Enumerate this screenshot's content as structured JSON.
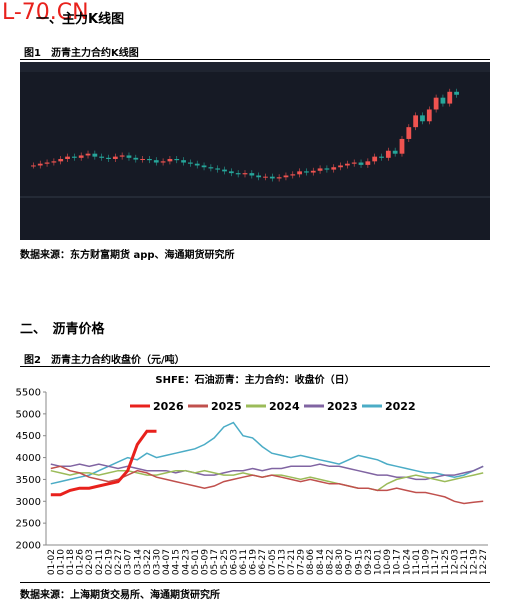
{
  "watermark": "L-70.CN",
  "heading1": "一、主力K线图",
  "figure1": {
    "caption": "图1　沥青主力合约K线图",
    "kline": {
      "type": "candlestick",
      "ylim": [
        3000,
        4900
      ],
      "closes": [
        3450,
        3480,
        3500,
        3520,
        3560,
        3600,
        3580,
        3620,
        3650,
        3600,
        3580,
        3560,
        3600,
        3620,
        3580,
        3550,
        3560,
        3540,
        3500,
        3520,
        3560,
        3540,
        3500,
        3480,
        3450,
        3420,
        3400,
        3380,
        3350,
        3320,
        3300,
        3320,
        3280,
        3250,
        3260,
        3230,
        3250,
        3280,
        3300,
        3350,
        3330,
        3360,
        3400,
        3380,
        3420,
        3450,
        3480,
        3500,
        3460,
        3520,
        3600,
        3580,
        3700,
        3650,
        3900,
        4100,
        4300,
        4200,
        4400,
        4600,
        4500,
        4700,
        4650
      ]
    },
    "source": "数据来源：东方财富期货 app、海通期货研究所"
  },
  "heading2": "二、　沥青价格",
  "figure2_caption": "图2　沥青主力合约收盘价（元/吨）",
  "chart_data": {
    "type": "line",
    "title": "SHFE：石油沥青：主力合约：收盘价（日）",
    "categories": [
      "01-02",
      "01-10",
      "01-18",
      "01-26",
      "02-03",
      "02-11",
      "02-19",
      "02-27",
      "03-07",
      "03-14",
      "03-22",
      "03-30",
      "04-07",
      "04-15",
      "04-23",
      "05-01",
      "05-09",
      "05-17",
      "05-25",
      "06-03",
      "06-11",
      "06-19",
      "06-27",
      "07-05",
      "07-13",
      "07-21",
      "07-29",
      "08-06",
      "08-14",
      "08-22",
      "08-30",
      "09-07",
      "09-15",
      "09-23",
      "10-01",
      "10-09",
      "10-17",
      "10-24",
      "11-01",
      "11-09",
      "11-17",
      "11-25",
      "12-03",
      "12-11",
      "12-19",
      "12-27"
    ],
    "series": [
      {
        "name": "2026",
        "color": "#e8211c",
        "width": 3,
        "values": [
          3150,
          3150,
          3250,
          3300,
          3300,
          3350,
          3400,
          3450,
          3700,
          4300,
          4600,
          4600,
          null,
          null,
          null,
          null,
          null,
          null,
          null,
          null,
          null,
          null,
          null,
          null,
          null,
          null,
          null,
          null,
          null,
          null,
          null,
          null,
          null,
          null,
          null,
          null,
          null,
          null,
          null,
          null,
          null,
          null,
          null,
          null,
          null,
          null
        ]
      },
      {
        "name": "2025",
        "color": "#c0504d",
        "width": 1.5,
        "values": [
          3750,
          3800,
          3700,
          3650,
          3550,
          3500,
          3450,
          3500,
          3600,
          3700,
          3650,
          3550,
          3500,
          3450,
          3400,
          3350,
          3300,
          3350,
          3450,
          3500,
          3550,
          3600,
          3550,
          3600,
          3550,
          3500,
          3450,
          3500,
          3450,
          3400,
          3400,
          3350,
          3300,
          3300,
          3250,
          3250,
          3300,
          3250,
          3200,
          3200,
          3150,
          3100,
          3000,
          2950,
          2980,
          3000
        ]
      },
      {
        "name": "2024",
        "color": "#9bbb59",
        "width": 1.5,
        "values": [
          3700,
          3650,
          3600,
          3650,
          3650,
          3600,
          3650,
          3700,
          3700,
          3650,
          3600,
          3600,
          3650,
          3700,
          3700,
          3650,
          3700,
          3650,
          3600,
          3600,
          3650,
          3600,
          3550,
          3600,
          3600,
          3550,
          3500,
          3550,
          3500,
          3450,
          3400,
          3350,
          3300,
          3300,
          3250,
          3400,
          3500,
          3550,
          3600,
          3550,
          3500,
          3450,
          3500,
          3550,
          3600,
          3650
        ]
      },
      {
        "name": "2023",
        "color": "#8064a2",
        "width": 1.5,
        "values": [
          3850,
          3800,
          3800,
          3850,
          3800,
          3850,
          3800,
          3750,
          3800,
          3750,
          3700,
          3700,
          3700,
          3650,
          3700,
          3650,
          3600,
          3600,
          3650,
          3700,
          3700,
          3750,
          3700,
          3750,
          3750,
          3800,
          3800,
          3800,
          3850,
          3800,
          3800,
          3750,
          3700,
          3650,
          3600,
          3600,
          3550,
          3550,
          3500,
          3500,
          3550,
          3600,
          3600,
          3650,
          3700,
          3800
        ]
      },
      {
        "name": "2022",
        "color": "#4bacc6",
        "width": 1.5,
        "values": [
          3400,
          3450,
          3500,
          3550,
          3600,
          3700,
          3800,
          3900,
          4000,
          3950,
          4100,
          4000,
          4050,
          4100,
          4150,
          4200,
          4300,
          4450,
          4700,
          4800,
          4500,
          4450,
          4250,
          4100,
          4050,
          4000,
          4050,
          4000,
          3950,
          3900,
          3850,
          3950,
          4050,
          4000,
          3950,
          3850,
          3800,
          3750,
          3700,
          3650,
          3650,
          3600,
          3550,
          3600,
          3700,
          3800
        ]
      }
    ],
    "ylim": [
      2000,
      5500
    ],
    "yticks": [
      2000,
      2500,
      3000,
      3500,
      4000,
      4500,
      5000,
      5500
    ],
    "legend": "top"
  },
  "source2": "数据来源：上海期货交易所、海通期货研究所"
}
